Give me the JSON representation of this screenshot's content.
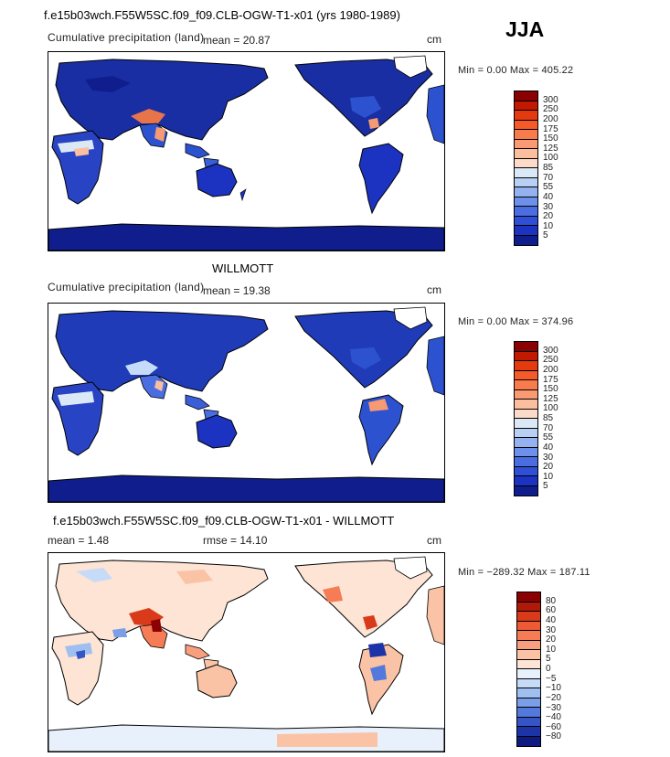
{
  "header": {
    "title": "f.e15b03wch.F55W5SC.f09_f09.CLB-OGW-T1-x01 (yrs 1980-1989)",
    "season": "JJA"
  },
  "panels": [
    {
      "subtitle": "Cumulative precipitation (land)",
      "mean_text": "mean =   20.87",
      "units": "cm",
      "minmax_text": "Min =    0.00  Max =  405.22",
      "colorbar": {
        "labels": [
          "300",
          "250",
          "200",
          "175",
          "150",
          "125",
          "100",
          "85",
          "70",
          "55",
          "40",
          "30",
          "20",
          "10",
          "5"
        ],
        "colors": [
          "#8b0000",
          "#c21a00",
          "#e43a10",
          "#f55a2a",
          "#f87b4b",
          "#f99a73",
          "#fbbf9f",
          "#fcdcc8",
          "#dbe9f7",
          "#b8d0f3",
          "#93b2ef",
          "#6d91ea",
          "#4a6ee2",
          "#2e4fd6",
          "#1b33c0",
          "#0f1e8c"
        ]
      },
      "heading_below": "WILLMOTT"
    },
    {
      "subtitle": "Cumulative precipitation (land)",
      "mean_text": "mean =   19.38",
      "units": "cm",
      "minmax_text": "Min =    0.00  Max =  374.96",
      "colorbar": {
        "labels": [
          "300",
          "250",
          "200",
          "175",
          "150",
          "125",
          "100",
          "85",
          "70",
          "55",
          "40",
          "30",
          "20",
          "10",
          "5"
        ],
        "colors": [
          "#8b0000",
          "#c21a00",
          "#e43a10",
          "#f55a2a",
          "#f87b4b",
          "#f99a73",
          "#fbbf9f",
          "#fcdcc8",
          "#dbe9f7",
          "#b8d0f3",
          "#93b2ef",
          "#6d91ea",
          "#4a6ee2",
          "#2e4fd6",
          "#1b33c0",
          "#0f1e8c"
        ]
      },
      "heading_below": "f.e15b03wch.F55W5SC.f09_f09.CLB-OGW-T1-x01 - WILLMOTT"
    },
    {
      "mean_text": "mean =    1.48",
      "rmse_text": "rmse =   14.10",
      "units": "cm",
      "minmax_text": "Min = −289.32  Max =  187.11",
      "colorbar": {
        "labels": [
          "80",
          "60",
          "40",
          "30",
          "20",
          "10",
          "5",
          "0",
          "−5",
          "−10",
          "−20",
          "−30",
          "−40",
          "−60",
          "−80"
        ],
        "colors": [
          "#8b0000",
          "#b01a0a",
          "#d93a1a",
          "#ee5a35",
          "#f57c55",
          "#f89f7d",
          "#fbc3a6",
          "#fde4d4",
          "#e8f1fb",
          "#c6dbf7",
          "#9fbff0",
          "#7a9ee8",
          "#5479dc",
          "#3555c7",
          "#1d33a8",
          "#0e1b80"
        ]
      }
    }
  ]
}
